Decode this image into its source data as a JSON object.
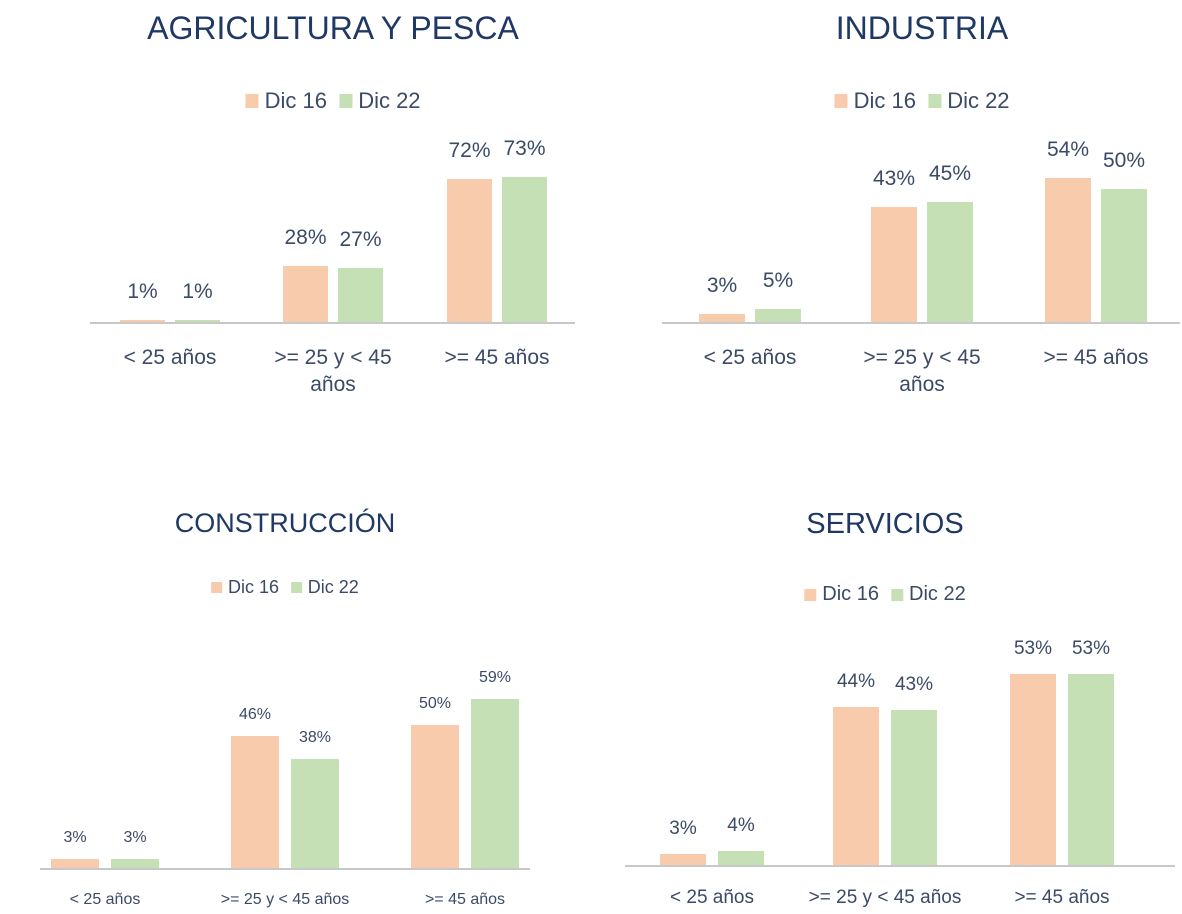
{
  "chart_data": [
    {
      "type": "bar",
      "title": "AGRICULTURA Y PESCA",
      "categories": [
        "< 25 años",
        ">= 25 y < 45 años",
        ">= 45 años"
      ],
      "series": [
        {
          "name": "Dic 16",
          "color": "#f8cbad",
          "values": [
            1,
            28,
            72
          ],
          "value_labels": [
            "1%",
            "28%",
            "72%"
          ]
        },
        {
          "name": "Dic 22",
          "color": "#c5e0b4",
          "values": [
            1,
            27,
            73
          ],
          "value_labels": [
            "1%",
            "27%",
            "73%"
          ]
        }
      ]
    },
    {
      "type": "bar",
      "title": "INDUSTRIA",
      "categories": [
        "< 25 años",
        ">= 25 y < 45 años",
        ">= 45 años"
      ],
      "series": [
        {
          "name": "Dic 16",
          "color": "#f8cbad",
          "values": [
            3,
            43,
            54
          ],
          "value_labels": [
            "3%",
            "43%",
            "54%"
          ]
        },
        {
          "name": "Dic 22",
          "color": "#c5e0b4",
          "values": [
            5,
            45,
            50
          ],
          "value_labels": [
            "5%",
            "45%",
            "50%"
          ]
        }
      ]
    },
    {
      "type": "bar",
      "title": "CONSTRUCCIÓN",
      "categories": [
        "< 25 años",
        ">= 25 y < 45 años",
        ">= 45 años"
      ],
      "series": [
        {
          "name": "Dic 16",
          "color": "#f8cbad",
          "values": [
            3,
            46,
            50
          ],
          "value_labels": [
            "3%",
            "46%",
            "50%"
          ]
        },
        {
          "name": "Dic 22",
          "color": "#c5e0b4",
          "values": [
            3,
            38,
            59
          ],
          "value_labels": [
            "3%",
            "38%",
            "59%"
          ]
        }
      ]
    },
    {
      "type": "bar",
      "title": "SERVICIOS",
      "categories": [
        "< 25 años",
        ">= 25 y < 45 años",
        ">= 45 años"
      ],
      "series": [
        {
          "name": "Dic 16",
          "color": "#f8cbad",
          "values": [
            3,
            44,
            53
          ],
          "value_labels": [
            "3%",
            "44%",
            "53%"
          ]
        },
        {
          "name": "Dic 22",
          "color": "#c5e0b4",
          "values": [
            4,
            43,
            53
          ],
          "value_labels": [
            "4%",
            "43%",
            "53%"
          ]
        }
      ]
    }
  ]
}
